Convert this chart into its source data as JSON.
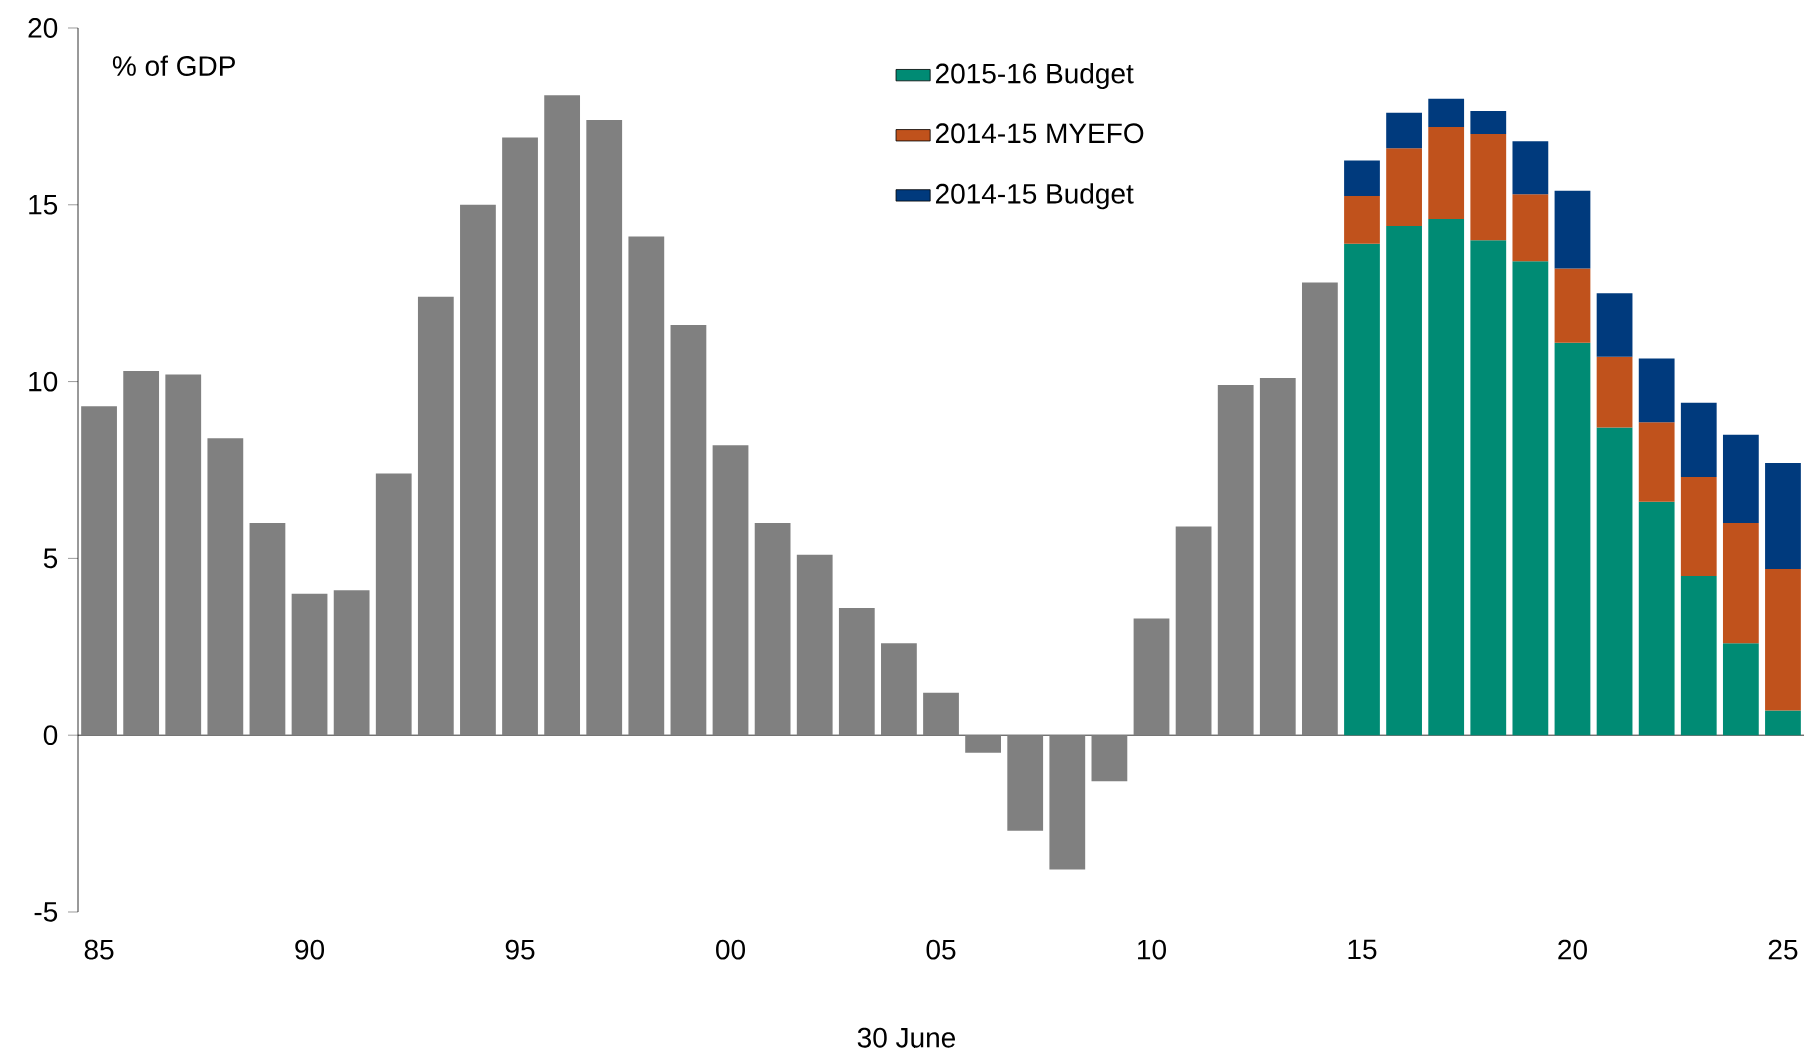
{
  "chart_data": {
    "type": "bar",
    "stacked": true,
    "ylabel": "% of GDP",
    "xlabel": "30 June",
    "categories": [
      "85",
      null,
      null,
      null,
      null,
      "90",
      null,
      null,
      null,
      null,
      "95",
      null,
      null,
      null,
      null,
      "00",
      null,
      null,
      null,
      null,
      "05",
      null,
      null,
      null,
      null,
      "10",
      null,
      null,
      null,
      null,
      "15",
      null,
      null,
      null,
      null,
      "20",
      null,
      null,
      null,
      null,
      "25"
    ],
    "series": [
      {
        "color": "#808080",
        "values": [
          9.3,
          10.3,
          10.2,
          8.4,
          6.0,
          4.0,
          4.1,
          7.4,
          12.4,
          15.0,
          16.9,
          18.1,
          17.4,
          14.1,
          11.6,
          8.2,
          6.0,
          5.1,
          3.6,
          2.6,
          1.2,
          -0.5,
          -2.7,
          -3.8,
          -1.3,
          3.3,
          5.9,
          9.9,
          10.1,
          12.8,
          null,
          null,
          null,
          null,
          null,
          null,
          null,
          null,
          null,
          null,
          null
        ]
      },
      {
        "name": "2015-16 Budget",
        "color": "#008b74",
        "values": [
          null,
          null,
          null,
          null,
          null,
          null,
          null,
          null,
          null,
          null,
          null,
          null,
          null,
          null,
          null,
          null,
          null,
          null,
          null,
          null,
          null,
          null,
          null,
          null,
          null,
          null,
          null,
          null,
          null,
          null,
          13.9,
          14.4,
          14.6,
          14.0,
          13.4,
          11.1,
          8.7,
          6.6,
          4.5,
          2.6,
          0.7
        ]
      },
      {
        "name": "2014-15 MYEFO",
        "color": "#c0521c",
        "values": [
          null,
          null,
          null,
          null,
          null,
          null,
          null,
          null,
          null,
          null,
          null,
          null,
          null,
          null,
          null,
          null,
          null,
          null,
          null,
          null,
          null,
          null,
          null,
          null,
          null,
          null,
          null,
          null,
          null,
          null,
          1.35,
          2.2,
          2.6,
          3.0,
          1.9,
          2.1,
          2.0,
          2.25,
          2.8,
          3.4,
          4.0
        ]
      },
      {
        "name": "2014-15 Budget",
        "color": "#003a7d",
        "values": [
          null,
          null,
          null,
          null,
          null,
          null,
          null,
          null,
          null,
          null,
          null,
          null,
          null,
          null,
          null,
          null,
          null,
          null,
          null,
          null,
          null,
          null,
          null,
          null,
          null,
          null,
          null,
          null,
          null,
          null,
          1.0,
          1.0,
          0.8,
          0.65,
          1.5,
          2.2,
          1.8,
          1.8,
          2.1,
          2.5,
          3.0
        ]
      }
    ],
    "ylim": [
      -5,
      20
    ],
    "yticks": [
      -5,
      0,
      5,
      10,
      15,
      20
    ],
    "legend": "top"
  }
}
